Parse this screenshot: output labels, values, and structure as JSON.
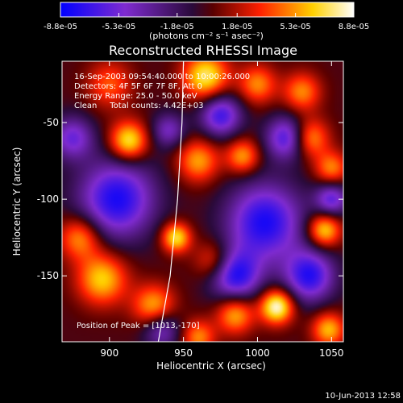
{
  "chart_data": {
    "type": "heatmap",
    "title": "Reconstructed RHESSI Image",
    "xlabel": "Heliocentric X (arcsec)",
    "ylabel": "Heliocentric Y (arcsec)",
    "xlim": [
      868,
      1058
    ],
    "ylim": [
      -193,
      -10
    ],
    "x_ticks": [
      900,
      950,
      1000,
      1050
    ],
    "y_ticks": [
      -50,
      -100,
      -150
    ],
    "colorbar": {
      "label": "(photons cm⁻² s⁻¹ asec⁻²)",
      "min": -8.8e-05,
      "max": 8.8e-05,
      "tick_labels": [
        "-8.8e-05",
        "-5.3e-05",
        "-1.8e-05",
        "1.8e-05",
        "5.3e-05",
        "8.8e-05"
      ],
      "tick_values": [
        -8.8e-05,
        -5.3e-05,
        -1.8e-05,
        1.8e-05,
        5.3e-05,
        8.8e-05
      ],
      "colors": [
        "#0000ff",
        "#7f2bd0",
        "#2a0a3a",
        "#5a0000",
        "#ff2000",
        "#ffd000",
        "#ffffff"
      ]
    },
    "annotations": [
      "16-Sep-2003 09:54:40.000 to 10:00:26.000",
      "Detectors: 4F 5F 6F 7F 8F, Att 0",
      "Energy Range: 25.0 - 50.0 keV",
      "Clean     Total counts: 4.42E+03",
      "Position of Peak = [1013,-170]"
    ],
    "peak": {
      "x": 1013,
      "y": -170
    },
    "limb_curve": [
      {
        "x": 933,
        "y": -193
      },
      {
        "x": 941,
        "y": -150
      },
      {
        "x": 946,
        "y": -100
      },
      {
        "x": 949,
        "y": -50
      },
      {
        "x": 950,
        "y": -10
      }
    ],
    "blobs": [
      {
        "x": 1013,
        "y": -170,
        "v": 8.8e-05,
        "s": 8
      },
      {
        "x": 913,
        "y": -62,
        "v": 7.5e-05,
        "s": 9
      },
      {
        "x": 1045,
        "y": -120,
        "v": 7e-05,
        "s": 8
      },
      {
        "x": 965,
        "y": -20,
        "v": 7.5e-05,
        "s": 11
      },
      {
        "x": 945,
        "y": -125,
        "v": 7.2e-05,
        "s": 7
      },
      {
        "x": 985,
        "y": -175,
        "v": 6e-05,
        "s": 9
      },
      {
        "x": 895,
        "y": -152,
        "v": 6.5e-05,
        "s": 12
      },
      {
        "x": 960,
        "y": -75,
        "v": 5.5e-05,
        "s": 10
      },
      {
        "x": 1035,
        "y": -60,
        "v": 6e-05,
        "s": 9
      },
      {
        "x": 1050,
        "y": -80,
        "v": 5e-05,
        "s": 8
      },
      {
        "x": 880,
        "y": -125,
        "v": 5.5e-05,
        "s": 10
      },
      {
        "x": 930,
        "y": -170,
        "v": 6e-05,
        "s": 10
      },
      {
        "x": 1000,
        "y": -25,
        "v": 5e-05,
        "s": 9
      },
      {
        "x": 990,
        "y": -72,
        "v": 5.5e-05,
        "s": 8
      },
      {
        "x": 1030,
        "y": -30,
        "v": 5e-05,
        "s": 9
      },
      {
        "x": 900,
        "y": -25,
        "v": 4e-05,
        "s": 11
      },
      {
        "x": 1048,
        "y": -185,
        "v": 6e-05,
        "s": 8
      },
      {
        "x": 970,
        "y": -140,
        "v": 4e-05,
        "s": 9
      },
      {
        "x": 960,
        "y": -190,
        "v": 5e-05,
        "s": 8
      },
      {
        "x": 905,
        "y": -100,
        "v": -8e-05,
        "s": 18
      },
      {
        "x": 1005,
        "y": -115,
        "v": -8e-05,
        "s": 18
      },
      {
        "x": 975,
        "y": -45,
        "v": -7e-05,
        "s": 10
      },
      {
        "x": 985,
        "y": -150,
        "v": -7.5e-05,
        "s": 12
      },
      {
        "x": 1035,
        "y": -150,
        "v": -7.5e-05,
        "s": 12
      },
      {
        "x": 1020,
        "y": -60,
        "v": -7e-05,
        "s": 10
      },
      {
        "x": 875,
        "y": -60,
        "v": -5.5e-05,
        "s": 10
      },
      {
        "x": 935,
        "y": -185,
        "v": -5e-05,
        "s": 9
      },
      {
        "x": 1050,
        "y": -100,
        "v": -6e-05,
        "s": 8
      },
      {
        "x": 940,
        "y": -55,
        "v": -4.5e-05,
        "s": 8
      }
    ]
  },
  "footer": {
    "timestamp": "10-Jun-2013 12:58"
  }
}
